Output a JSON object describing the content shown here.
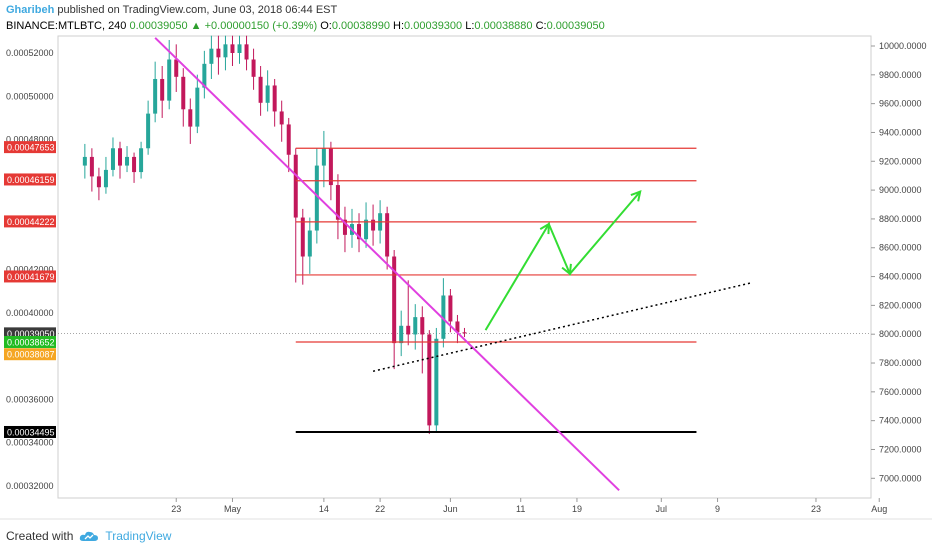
{
  "header": {
    "author": "Gharibeh",
    "published": "published on TradingView.com, June 03, 2018 06:44 EST"
  },
  "ohlc": {
    "symbol": "BINANCE:MTLBTC, 240",
    "last": "0.00039050",
    "change": "+0.00000150 (+0.39%)",
    "o_label": "O:",
    "o": "0.00038990",
    "h_label": "H:",
    "h": "0.00039300",
    "l_label": "L:",
    "l": "0.00038880",
    "c_label": "C:",
    "c": "0.00039050"
  },
  "footer": {
    "created_with": "Created with",
    "brand": "TradingView"
  },
  "colors": {
    "resistance": "#e53935",
    "support": "#000000",
    "trend_down": "#e040e0",
    "projection": "#33dd33",
    "up_candle": "#26a69a",
    "down_candle": "#c2185b"
  },
  "chart_data": {
    "type": "candlestick",
    "left_axis": {
      "ticks": [
        "0.00052000",
        "0.00050000",
        "0.00048000",
        "0.00042000",
        "0.00040000",
        "0.00036000",
        "0.00034000",
        "0.00032000"
      ],
      "tick_values": [
        0.00052,
        0.0005,
        0.00048,
        0.00042,
        0.0004,
        0.00036,
        0.00034,
        0.00032
      ],
      "badges": [
        {
          "label": "0.00047653",
          "value": 0.00047653,
          "color": "#e53935"
        },
        {
          "label": "0.00046159",
          "value": 0.00046159,
          "color": "#e53935"
        },
        {
          "label": "0.00044222",
          "value": 0.00044222,
          "color": "#e53935"
        },
        {
          "label": "0.00041679",
          "value": 0.00041679,
          "color": "#e53935"
        },
        {
          "label": "0.00039050",
          "value": 0.0003905,
          "color": "#3a3a3a"
        },
        {
          "label": "0.00038652",
          "value": 0.00038652,
          "color": "#22bb22"
        },
        {
          "label": "0.00038087",
          "value": 0.00038087,
          "color": "#f5a623"
        },
        {
          "label": "0.00034495",
          "value": 0.00034495,
          "color": "#000000"
        }
      ]
    },
    "right_axis": {
      "ticks": [
        "10000.0000",
        "9800.0000",
        "9600.0000",
        "9400.0000",
        "9200.0000",
        "9000.0000",
        "8800.0000",
        "8600.0000",
        "8400.0000",
        "8200.0000",
        "8000.0000",
        "7800.0000",
        "7600.0000",
        "7400.0000",
        "7200.0000",
        "7000.0000"
      ],
      "tick_values": [
        10000,
        9800,
        9600,
        9400,
        9200,
        9000,
        8800,
        8600,
        8400,
        8200,
        8000,
        7800,
        7600,
        7400,
        7200,
        7000
      ]
    },
    "x_axis": {
      "ticks": [
        "23",
        "May",
        "14",
        "22",
        "Jun",
        "11",
        "19",
        "Jul",
        "9",
        "23",
        "Aug"
      ],
      "tick_dates": [
        "2018-04-23",
        "2018-05-01",
        "2018-05-14",
        "2018-05-22",
        "2018-06-01",
        "2018-06-11",
        "2018-06-19",
        "2018-07-01",
        "2018-07-09",
        "2018-07-23",
        "2018-08-01"
      ]
    },
    "horizontal_levels": [
      {
        "value": 0.000476,
        "from": "2018-05-10",
        "to": "2018-07-06",
        "color": "#e53935"
      },
      {
        "value": 0.000461,
        "from": "2018-05-10",
        "to": "2018-07-06",
        "color": "#e53935"
      },
      {
        "value": 0.000442,
        "from": "2018-05-10",
        "to": "2018-07-06",
        "color": "#e53935"
      },
      {
        "value": 0.0004175,
        "from": "2018-05-10",
        "to": "2018-07-06",
        "color": "#e53935"
      },
      {
        "value": 0.0003865,
        "from": "2018-05-10",
        "to": "2018-07-06",
        "color": "#e53935"
      },
      {
        "value": 0.00034495,
        "from": "2018-05-10",
        "to": "2018-07-06",
        "color": "#000000"
      }
    ],
    "trendlines": [
      {
        "style": "solid",
        "color": "#e040e0",
        "from": [
          "2018-04-20",
          0.000527
        ],
        "to": [
          "2018-06-25",
          0.000318
        ]
      },
      {
        "style": "dotted",
        "color": "#000000",
        "from": [
          "2018-05-21",
          0.000373
        ],
        "to": [
          "2018-07-14",
          0.000414
        ]
      }
    ],
    "projection_path": [
      [
        "2018-06-06",
        0.000392
      ],
      [
        "2018-06-15",
        0.000441
      ],
      [
        "2018-06-18",
        0.000418
      ],
      [
        "2018-06-28",
        0.000456
      ]
    ],
    "last_price": 0.0003905,
    "series": [
      {
        "d": "2018-04-10",
        "o": 0.000468,
        "c": 0.000472,
        "h": 0.000478,
        "l": 0.000462
      },
      {
        "d": "2018-04-11",
        "o": 0.000472,
        "c": 0.000463,
        "h": 0.000476,
        "l": 0.000456
      },
      {
        "d": "2018-04-12",
        "o": 0.000463,
        "c": 0.000458,
        "h": 0.000467,
        "l": 0.000452
      },
      {
        "d": "2018-04-13",
        "o": 0.000458,
        "c": 0.000466,
        "h": 0.000472,
        "l": 0.000455
      },
      {
        "d": "2018-04-14",
        "o": 0.000466,
        "c": 0.000476,
        "h": 0.000481,
        "l": 0.000463
      },
      {
        "d": "2018-04-15",
        "o": 0.000476,
        "c": 0.000468,
        "h": 0.000479,
        "l": 0.000462
      },
      {
        "d": "2018-04-16",
        "o": 0.000468,
        "c": 0.000472,
        "h": 0.000477,
        "l": 0.000465
      },
      {
        "d": "2018-04-17",
        "o": 0.000472,
        "c": 0.000465,
        "h": 0.000474,
        "l": 0.00046
      },
      {
        "d": "2018-04-18",
        "o": 0.000465,
        "c": 0.000476,
        "h": 0.000479,
        "l": 0.000462
      },
      {
        "d": "2018-04-19",
        "o": 0.000476,
        "c": 0.000492,
        "h": 0.000498,
        "l": 0.000473
      },
      {
        "d": "2018-04-20",
        "o": 0.000492,
        "c": 0.000508,
        "h": 0.000516,
        "l": 0.000488
      },
      {
        "d": "2018-04-21",
        "o": 0.000508,
        "c": 0.000498,
        "h": 0.000514,
        "l": 0.00049
      },
      {
        "d": "2018-04-22",
        "o": 0.000498,
        "c": 0.000517,
        "h": 0.000526,
        "l": 0.000494
      },
      {
        "d": "2018-04-23",
        "o": 0.000517,
        "c": 0.000509,
        "h": 0.000524,
        "l": 0.000502
      },
      {
        "d": "2018-04-24",
        "o": 0.000509,
        "c": 0.000494,
        "h": 0.000513,
        "l": 0.000486
      },
      {
        "d": "2018-04-25",
        "o": 0.000494,
        "c": 0.000486,
        "h": 0.000499,
        "l": 0.000478
      },
      {
        "d": "2018-04-26",
        "o": 0.000486,
        "c": 0.000504,
        "h": 0.00051,
        "l": 0.000483
      },
      {
        "d": "2018-04-27",
        "o": 0.000504,
        "c": 0.000515,
        "h": 0.000521,
        "l": 0.000499
      },
      {
        "d": "2018-04-28",
        "o": 0.000515,
        "c": 0.000522,
        "h": 0.000528,
        "l": 0.000508
      },
      {
        "d": "2018-04-29",
        "o": 0.000522,
        "c": 0.000518,
        "h": 0.000528,
        "l": 0.00051
      },
      {
        "d": "2018-04-30",
        "o": 0.000518,
        "c": 0.000524,
        "h": 0.000528,
        "l": 0.000512
      },
      {
        "d": "2018-05-01",
        "o": 0.000524,
        "c": 0.00052,
        "h": 0.000528,
        "l": 0.000514
      },
      {
        "d": "2018-05-02",
        "o": 0.00052,
        "c": 0.000524,
        "h": 0.000528,
        "l": 0.000515
      },
      {
        "d": "2018-05-03",
        "o": 0.000524,
        "c": 0.000517,
        "h": 0.000528,
        "l": 0.000512
      },
      {
        "d": "2018-05-04",
        "o": 0.000517,
        "c": 0.000509,
        "h": 0.000522,
        "l": 0.000503
      },
      {
        "d": "2018-05-05",
        "o": 0.000509,
        "c": 0.000497,
        "h": 0.000514,
        "l": 0.000491
      },
      {
        "d": "2018-05-06",
        "o": 0.000497,
        "c": 0.000505,
        "h": 0.000512,
        "l": 0.000493
      },
      {
        "d": "2018-05-07",
        "o": 0.000505,
        "c": 0.000493,
        "h": 0.000508,
        "l": 0.000486
      },
      {
        "d": "2018-05-08",
        "o": 0.000493,
        "c": 0.000487,
        "h": 0.000498,
        "l": 0.000479
      },
      {
        "d": "2018-05-09",
        "o": 0.000487,
        "c": 0.000473,
        "h": 0.00049,
        "l": 0.000465
      },
      {
        "d": "2018-05-10",
        "o": 0.000473,
        "c": 0.000444,
        "h": 0.000476,
        "l": 0.000414
      },
      {
        "d": "2018-05-11",
        "o": 0.000444,
        "c": 0.000426,
        "h": 0.000448,
        "l": 0.000413
      },
      {
        "d": "2018-05-12",
        "o": 0.000426,
        "c": 0.000438,
        "h": 0.000444,
        "l": 0.000418
      },
      {
        "d": "2018-05-13",
        "o": 0.000438,
        "c": 0.000468,
        "h": 0.000476,
        "l": 0.000432
      },
      {
        "d": "2018-05-14",
        "o": 0.000468,
        "c": 0.000476,
        "h": 0.000484,
        "l": 0.000458
      },
      {
        "d": "2018-05-15",
        "o": 0.000476,
        "c": 0.000459,
        "h": 0.000479,
        "l": 0.000452
      },
      {
        "d": "2018-05-16",
        "o": 0.000459,
        "c": 0.000443,
        "h": 0.000464,
        "l": 0.000434
      },
      {
        "d": "2018-05-17",
        "o": 0.000443,
        "c": 0.000436,
        "h": 0.000449,
        "l": 0.000428
      },
      {
        "d": "2018-05-18",
        "o": 0.000436,
        "c": 0.000441,
        "h": 0.000448,
        "l": 0.00043
      },
      {
        "d": "2018-05-19",
        "o": 0.000441,
        "c": 0.000434,
        "h": 0.000446,
        "l": 0.000428
      },
      {
        "d": "2018-05-20",
        "o": 0.000434,
        "c": 0.000443,
        "h": 0.000451,
        "l": 0.00043
      },
      {
        "d": "2018-05-21",
        "o": 0.000443,
        "c": 0.000438,
        "h": 0.00045,
        "l": 0.000431
      },
      {
        "d": "2018-05-22",
        "o": 0.000438,
        "c": 0.000446,
        "h": 0.000452,
        "l": 0.000432
      },
      {
        "d": "2018-05-23",
        "o": 0.000446,
        "c": 0.000426,
        "h": 0.000449,
        "l": 0.00042
      },
      {
        "d": "2018-05-24",
        "o": 0.000426,
        "c": 0.000386,
        "h": 0.000429,
        "l": 0.000374
      },
      {
        "d": "2018-05-25",
        "o": 0.000386,
        "c": 0.000394,
        "h": 0.000401,
        "l": 0.00038
      },
      {
        "d": "2018-05-26",
        "o": 0.000394,
        "c": 0.00039,
        "h": 0.000415,
        "l": 0.000385
      },
      {
        "d": "2018-05-27",
        "o": 0.00039,
        "c": 0.000398,
        "h": 0.000404,
        "l": 0.000383
      },
      {
        "d": "2018-05-28",
        "o": 0.000398,
        "c": 0.00039,
        "h": 0.000403,
        "l": 0.000372
      },
      {
        "d": "2018-05-29",
        "o": 0.00039,
        "c": 0.000348,
        "h": 0.000392,
        "l": 0.000344
      },
      {
        "d": "2018-05-30",
        "o": 0.000348,
        "c": 0.000388,
        "h": 0.000393,
        "l": 0.000345
      },
      {
        "d": "2018-05-31",
        "o": 0.000388,
        "c": 0.000408,
        "h": 0.000416,
        "l": 0.000384
      },
      {
        "d": "2018-06-01",
        "o": 0.000408,
        "c": 0.000396,
        "h": 0.000411,
        "l": 0.000391
      },
      {
        "d": "2018-06-02",
        "o": 0.000396,
        "c": 0.000391,
        "h": 0.000399,
        "l": 0.000386
      },
      {
        "d": "2018-06-03",
        "o": 0.000391,
        "c": 0.0003905,
        "h": 0.000393,
        "l": 0.0003888
      }
    ]
  }
}
